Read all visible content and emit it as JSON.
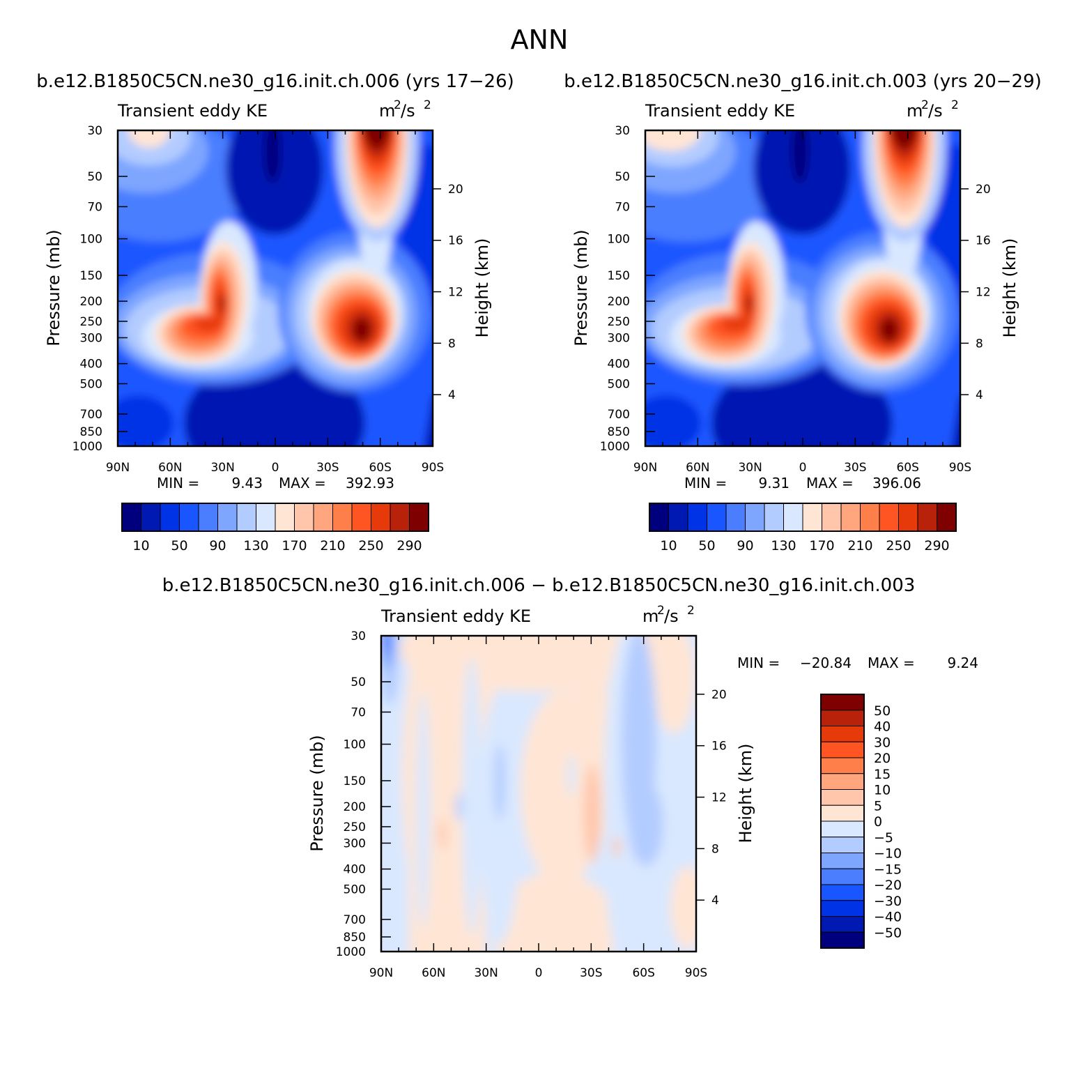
{
  "figure": {
    "season": "ANN",
    "diff_title": "b.e12.B1850C5CN.ne30_g16.init.ch.006 − b.e12.B1850C5CN.ne30_g16.init.ch.003"
  },
  "axes": {
    "pressure_label": "Pressure (mb)",
    "height_label": "Height (km)",
    "variable": "Transient eddy KE",
    "units_base": "m",
    "units_mid": "/s",
    "units_exp": "2",
    "lat_ticks": [
      "90N",
      "60N",
      "30N",
      "0",
      "30S",
      "60S",
      "90S"
    ],
    "pressure_ticks": [
      "30",
      "50",
      "70",
      "100",
      "150",
      "200",
      "250",
      "300",
      "400",
      "500",
      "700",
      "850",
      "1000"
    ],
    "height_ticks": [
      "20",
      "16",
      "12",
      "8",
      "4"
    ]
  },
  "panels": {
    "case1": {
      "title": "b.e12.B1850C5CN.ne30_g16.init.ch.006 (yrs 17−26)",
      "min_label": "MIN =",
      "min_value": "9.43",
      "max_label": "MAX =",
      "max_value": "392.93"
    },
    "case2": {
      "title": "b.e12.B1850C5CN.ne30_g16.init.ch.003 (yrs 20−29)",
      "min_label": "MIN =",
      "min_value": "9.31",
      "max_label": "MAX =",
      "max_value": "396.06"
    },
    "diff": {
      "min_label": "MIN =",
      "min_value": "−20.84",
      "max_label": "MAX =",
      "max_value": "9.24"
    }
  },
  "colorbars": {
    "abs_labels": [
      "10",
      "50",
      "90",
      "130",
      "170",
      "210",
      "250",
      "290"
    ],
    "abs_colors": [
      "#00007f",
      "#0019b2",
      "#0033e6",
      "#1a56ff",
      "#4a7eff",
      "#7ea6ff",
      "#b3ccff",
      "#d9e8ff",
      "#ffe5d4",
      "#ffc6ab",
      "#ffa67f",
      "#ff7f4a",
      "#ff5522",
      "#e63a0a",
      "#b8210a",
      "#7f0000"
    ],
    "diff_labels": [
      "50",
      "40",
      "30",
      "20",
      "15",
      "10",
      "5",
      "0",
      "−5",
      "−10",
      "−15",
      "−20",
      "−30",
      "−40",
      "−50"
    ],
    "diff_colors": [
      "#7f0000",
      "#b8210a",
      "#e63a0a",
      "#ff5522",
      "#ff7f4a",
      "#ffa67f",
      "#ffc6ab",
      "#ffe5d4",
      "#d9e8ff",
      "#b3ccff",
      "#7ea6ff",
      "#4a7eff",
      "#1a56ff",
      "#0033e6",
      "#0019b2",
      "#00007f"
    ]
  },
  "chart_data": [
    {
      "type": "heatmap",
      "title": "b.e12.B1850C5CN.ne30_g16.init.ch.006 (yrs 17−26)",
      "xlabel": "",
      "ylabel": "Pressure (mb)",
      "y2label": "Height (km)",
      "x_range": [
        "90N",
        "90S"
      ],
      "y_range_mb": [
        30,
        1000
      ],
      "y_scale": "log",
      "levels": [
        10,
        30,
        50,
        70,
        90,
        110,
        130,
        150,
        170,
        190,
        210,
        230,
        250,
        270,
        290
      ],
      "min": 9.43,
      "max": 392.93,
      "features": [
        {
          "name": "NH upper-tropospheric jet maximum",
          "lat": 30,
          "pressure": 200,
          "value": ">290"
        },
        {
          "name": "SH upper-tropospheric jet maximum",
          "lat": -47,
          "pressure": 270,
          "value": ">290"
        },
        {
          "name": "SH stratospheric maximum",
          "lat": -60,
          "pressure": 30,
          "value": ">290"
        },
        {
          "name": "Tropical lower troposphere minimum",
          "lat": 0,
          "pressure": 700,
          "value": "<30"
        }
      ]
    },
    {
      "type": "heatmap",
      "title": "b.e12.B1850C5CN.ne30_g16.init.ch.003 (yrs 20−29)",
      "xlabel": "",
      "ylabel": "Pressure (mb)",
      "y2label": "Height (km)",
      "x_range": [
        "90N",
        "90S"
      ],
      "y_range_mb": [
        30,
        1000
      ],
      "y_scale": "log",
      "levels": [
        10,
        30,
        50,
        70,
        90,
        110,
        130,
        150,
        170,
        190,
        210,
        230,
        250,
        270,
        290
      ],
      "min": 9.31,
      "max": 396.06,
      "features": [
        {
          "name": "NH upper-tropospheric jet maximum",
          "lat": 30,
          "pressure": 200,
          "value": ">290"
        },
        {
          "name": "SH upper-tropospheric jet maximum",
          "lat": -47,
          "pressure": 270,
          "value": ">290"
        },
        {
          "name": "SH stratospheric maximum",
          "lat": -60,
          "pressure": 30,
          "value": ">290"
        },
        {
          "name": "Tropical lower troposphere minimum",
          "lat": 0,
          "pressure": 700,
          "value": "<30"
        }
      ]
    },
    {
      "type": "heatmap",
      "title": "b.e12.B1850C5CN.ne30_g16.init.ch.006 − b.e12.B1850C5CN.ne30_g16.init.ch.003",
      "xlabel": "",
      "ylabel": "Pressure (mb)",
      "y2label": "Height (km)",
      "x_range": [
        "90N",
        "90S"
      ],
      "y_range_mb": [
        30,
        1000
      ],
      "y_scale": "log",
      "levels": [
        -50,
        -40,
        -30,
        -20,
        -15,
        -10,
        -5,
        0,
        5,
        10,
        15,
        20,
        30,
        40,
        50
      ],
      "min": -20.84,
      "max": 9.24
    }
  ]
}
